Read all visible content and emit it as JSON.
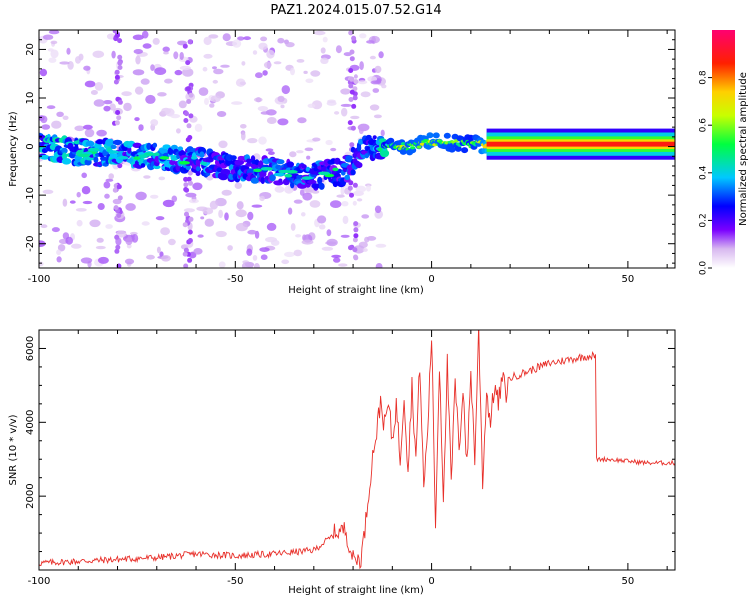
{
  "title": "PAZ1.2024.015.07.52.G14",
  "chart_data": [
    {
      "type": "heatmap",
      "xlabel": "Height of straight line (km)",
      "ylabel": "Frequency (Hz)",
      "xlim": [
        -100,
        62
      ],
      "ylim": [
        -25,
        24
      ],
      "xticks": [
        -100,
        -50,
        0,
        50
      ],
      "yticks": [
        -20,
        -10,
        0,
        10,
        20
      ],
      "colorbar": {
        "label": "Normalized spectral amplitude",
        "range": [
          0,
          1
        ],
        "ticks": [
          0.0,
          0.2,
          0.4,
          0.6,
          0.8
        ],
        "tick_labels": [
          "0.0",
          "0.2",
          "0.4",
          "0.6",
          "0.8"
        ],
        "colormap": [
          "#ffffff",
          "#b07ce8",
          "#7a00ff",
          "#0000ff",
          "#00c8ff",
          "#00ff40",
          "#c8ff00",
          "#ffd000",
          "#ff2000",
          "#ff0070"
        ]
      },
      "ridge": {
        "points": [
          [
            -100,
            0
          ],
          [
            -90,
            -1
          ],
          [
            -80,
            -1.5
          ],
          [
            -70,
            -2
          ],
          [
            -60,
            -3
          ],
          [
            -50,
            -4.5
          ],
          [
            -40,
            -5
          ],
          [
            -30,
            -6
          ],
          [
            -22,
            -5
          ],
          [
            -18,
            -1
          ],
          [
            -15,
            0
          ],
          [
            -5,
            0
          ],
          [
            0,
            1
          ],
          [
            10,
            0.5
          ],
          [
            15,
            0.5
          ],
          [
            62,
            0.5
          ]
        ],
        "amplitude": [
          [
            -100,
            0.4
          ],
          [
            -50,
            0.3
          ],
          [
            -25,
            0.3
          ],
          [
            -15,
            0.3
          ],
          [
            -10,
            0.55
          ],
          [
            0,
            0.6
          ],
          [
            10,
            0.5
          ],
          [
            15,
            0.7
          ],
          [
            62,
            0.9
          ]
        ]
      },
      "grid": false
    },
    {
      "type": "line",
      "xlabel": "Height of straight line (km)",
      "ylabel": "SNR (10 * v/v)",
      "xlim": [
        -100,
        62
      ],
      "ylim": [
        0,
        6500
      ],
      "xticks": [
        -100,
        -50,
        0,
        50
      ],
      "yticks": [
        2000,
        4000,
        6000
      ],
      "color": "#e8302a",
      "grid": false,
      "series": [
        {
          "x": [
            -100,
            -90,
            -80,
            -70,
            -60,
            -50,
            -40,
            -30,
            -25,
            -22,
            -20,
            -18,
            -17,
            -16,
            -15,
            -14,
            -13,
            -12,
            -11,
            -10,
            -9,
            -8,
            -7,
            -6,
            -5,
            -4,
            -3,
            -2,
            -1,
            0,
            1,
            2,
            3,
            4,
            5,
            6,
            7,
            8,
            9,
            10,
            11,
            12,
            13,
            14,
            15,
            16,
            17,
            18,
            19,
            20,
            25,
            30,
            35,
            40,
            41.9,
            42,
            45,
            50,
            55,
            62
          ],
          "y": [
            150,
            200,
            250,
            300,
            400,
            350,
            400,
            500,
            900,
            1000,
            200,
            200,
            1000,
            2000,
            3000,
            3700,
            4600,
            3900,
            4500,
            3500,
            4500,
            3000,
            4800,
            2700,
            5000,
            3000,
            5600,
            2200,
            3800,
            6400,
            1200,
            5600,
            2000,
            5600,
            2300,
            5100,
            3200,
            5000,
            2800,
            5400,
            3000,
            6500,
            2400,
            4800,
            4000,
            5000,
            4500,
            5200,
            4800,
            5200,
            5400,
            5600,
            5700,
            5800,
            5800,
            3000,
            3000,
            2950,
            2900,
            2900
          ]
        }
      ]
    }
  ]
}
